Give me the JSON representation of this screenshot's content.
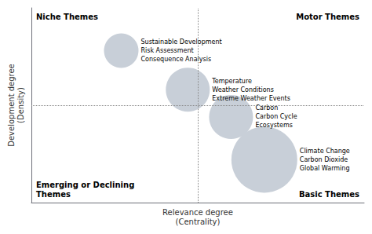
{
  "chart_data": {
    "type": "scatter",
    "x": [
      0.27,
      0.47,
      0.6,
      0.7
    ],
    "y": [
      0.78,
      0.58,
      0.44,
      0.22
    ],
    "sizes": [
      22,
      28,
      28,
      42
    ],
    "labels": [
      "Sustainable Development\nRisk Assessment\nConsequence Analysis",
      "Temperature\nWeather Conditions\nExtreme Weather Events",
      "Carbon\nCarbon Cycle\nEcosystems",
      "Climate Change\nCarbon Dioxide\nGlobal Warming"
    ],
    "color": "#c8cfd8",
    "xlabel": "Relevance degree\n(Centrality)",
    "ylabel": "Development degree\n(Density)",
    "xlim": [
      0,
      1
    ],
    "ylim": [
      0,
      1
    ],
    "xticks": [],
    "yticks": [],
    "tick_labels": false,
    "grid": false,
    "dividers": {
      "x": 0.5,
      "y": 0.5
    },
    "annotations": [
      "Niche Themes",
      "Motor Themes",
      "Emerging or Declining\nThemes",
      "Basic Themes"
    ]
  }
}
